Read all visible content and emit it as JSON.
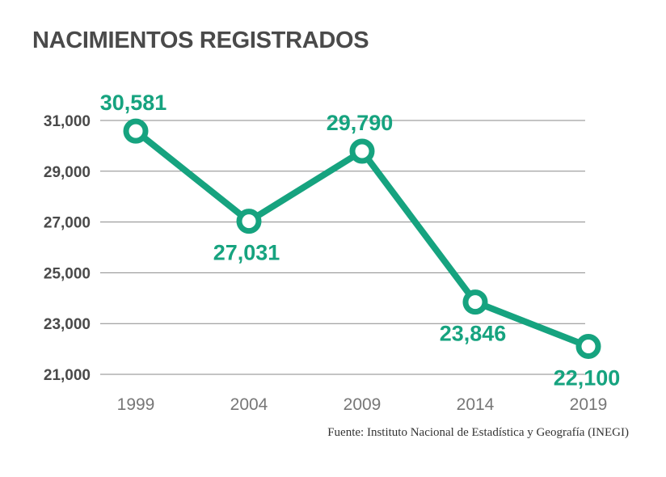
{
  "chart_data": {
    "type": "line",
    "title": "NACIMIENTOS REGISTRADOS",
    "xlabel": "",
    "ylabel": "",
    "categories": [
      "1999",
      "2004",
      "2009",
      "2014",
      "2019"
    ],
    "values": [
      30581,
      27031,
      29790,
      23846,
      22100
    ],
    "value_labels": [
      "30,581",
      "27,031",
      "29,790",
      "23,846",
      "22,100"
    ],
    "yticks": [
      21000,
      23000,
      25000,
      27000,
      29000,
      31000
    ],
    "ytick_labels": [
      "21,000",
      "23,000",
      "25,000",
      "27,000",
      "29,000",
      "31,000"
    ],
    "ylim": [
      21000,
      31000
    ],
    "grid": true,
    "legend": "none",
    "label_placement": [
      "above",
      "below",
      "above",
      "below",
      "below"
    ],
    "line_color": "#16a37f",
    "source": "Fuente: Instituto Nacional de Estadística y Geografía (INEGI)"
  }
}
